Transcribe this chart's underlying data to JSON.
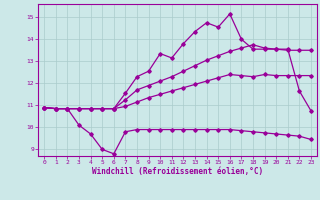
{
  "xlabel": "Windchill (Refroidissement éolien,°C)",
  "background_color": "#cce8e8",
  "grid_color": "#aacccc",
  "line_color": "#990099",
  "xlim": [
    -0.5,
    23.5
  ],
  "ylim": [
    8.7,
    15.6
  ],
  "yticks": [
    9,
    10,
    11,
    12,
    13,
    14,
    15
  ],
  "xticks": [
    0,
    1,
    2,
    3,
    4,
    5,
    6,
    7,
    8,
    9,
    10,
    11,
    12,
    13,
    14,
    15,
    16,
    17,
    18,
    19,
    20,
    21,
    22,
    23
  ],
  "series": {
    "line1_x": [
      0,
      1,
      2,
      3,
      4,
      5,
      6,
      7,
      8,
      9,
      10,
      11,
      12,
      13,
      14,
      15,
      16,
      17,
      18,
      19,
      20,
      21,
      22,
      23
    ],
    "line1_y": [
      10.9,
      10.85,
      10.85,
      10.1,
      9.7,
      9.0,
      8.8,
      9.8,
      9.9,
      9.9,
      9.9,
      9.9,
      9.9,
      9.9,
      9.9,
      9.9,
      9.9,
      9.85,
      9.8,
      9.75,
      9.7,
      9.65,
      9.6,
      9.45
    ],
    "line2_x": [
      0,
      1,
      2,
      3,
      4,
      5,
      6,
      7,
      8,
      9,
      10,
      11,
      12,
      13,
      14,
      15,
      16,
      17,
      18,
      19,
      20,
      21,
      22,
      23
    ],
    "line2_y": [
      10.9,
      10.85,
      10.85,
      10.85,
      10.85,
      10.85,
      10.85,
      11.55,
      12.3,
      12.55,
      13.35,
      13.15,
      13.8,
      14.35,
      14.75,
      14.55,
      15.15,
      14.0,
      13.55,
      13.55,
      13.55,
      13.55,
      11.65,
      10.75
    ],
    "line3_x": [
      0,
      1,
      2,
      3,
      4,
      5,
      6,
      7,
      8,
      9,
      10,
      11,
      12,
      13,
      14,
      15,
      16,
      17,
      18,
      19,
      20,
      21,
      22,
      23
    ],
    "line3_y": [
      10.9,
      10.85,
      10.85,
      10.85,
      10.85,
      10.85,
      10.85,
      11.25,
      11.7,
      11.9,
      12.1,
      12.3,
      12.55,
      12.8,
      13.05,
      13.25,
      13.45,
      13.6,
      13.75,
      13.6,
      13.55,
      13.5,
      13.5,
      13.5
    ],
    "line4_x": [
      0,
      1,
      2,
      3,
      4,
      5,
      6,
      7,
      8,
      9,
      10,
      11,
      12,
      13,
      14,
      15,
      16,
      17,
      18,
      19,
      20,
      21,
      22,
      23
    ],
    "line4_y": [
      10.9,
      10.85,
      10.85,
      10.85,
      10.85,
      10.85,
      10.85,
      10.95,
      11.15,
      11.35,
      11.5,
      11.65,
      11.8,
      11.95,
      12.1,
      12.25,
      12.4,
      12.35,
      12.3,
      12.4,
      12.35,
      12.35,
      12.35,
      12.35
    ]
  }
}
